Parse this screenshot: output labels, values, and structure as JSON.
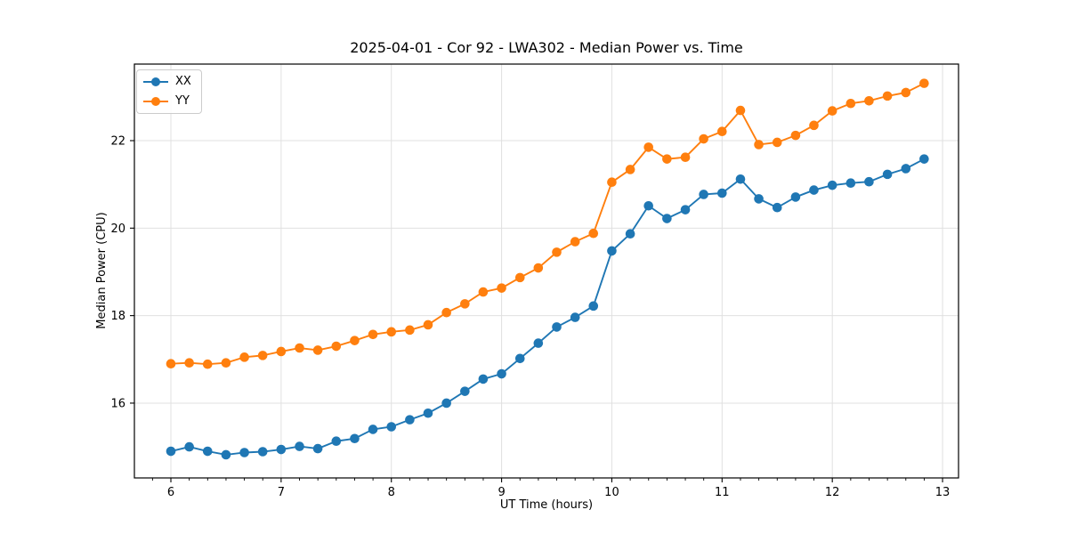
{
  "colors": {
    "xx_series": "#1f77b4",
    "yy_series": "#ff7f0e",
    "grid": "#e0e0e0",
    "spine": "#000000",
    "text": "#000000",
    "legend_border": "#cccccc",
    "background": "#ffffff"
  },
  "chart_data": {
    "type": "line",
    "title": "2025-04-01 - Cor 92 - LWA302 - Median Power vs. Time",
    "xlabel": "UT Time (hours)",
    "ylabel": "Median Power (CPU)",
    "xlim": [
      5.669,
      13.145
    ],
    "ylim": [
      14.29,
      23.75
    ],
    "xticks": [
      6,
      7,
      8,
      9,
      10,
      11,
      12,
      13
    ],
    "yticks": [
      16,
      18,
      20,
      22
    ],
    "x_minor_tick_step": 0.16667,
    "grid": true,
    "legend_position": "upper-left",
    "marker": "circle",
    "x": [
      6.0,
      6.167,
      6.333,
      6.5,
      6.667,
      6.833,
      7.0,
      7.167,
      7.333,
      7.5,
      7.667,
      7.833,
      8.0,
      8.167,
      8.333,
      8.5,
      8.667,
      8.833,
      9.0,
      9.167,
      9.333,
      9.5,
      9.667,
      9.833,
      10.0,
      10.167,
      10.333,
      10.5,
      10.667,
      10.833,
      11.0,
      11.167,
      11.333,
      11.5,
      11.667,
      11.833,
      12.0,
      12.167,
      12.333,
      12.5,
      12.667,
      12.833
    ],
    "series": [
      {
        "name": "XX",
        "color": "#1f77b4",
        "values": [
          14.9,
          15.0,
          14.9,
          14.82,
          14.87,
          14.89,
          14.94,
          15.01,
          14.96,
          15.13,
          15.19,
          15.4,
          15.46,
          15.62,
          15.77,
          16.0,
          16.27,
          16.55,
          16.67,
          17.02,
          17.37,
          17.74,
          17.96,
          18.22,
          19.48,
          19.87,
          20.51,
          20.22,
          20.42,
          20.77,
          20.8,
          21.12,
          20.67,
          20.47,
          20.71,
          20.87,
          20.98,
          21.03,
          21.06,
          21.23,
          21.36,
          21.58
        ]
      },
      {
        "name": "YY",
        "color": "#ff7f0e",
        "values": [
          16.9,
          16.92,
          16.89,
          16.92,
          17.05,
          17.09,
          17.18,
          17.26,
          17.21,
          17.3,
          17.43,
          17.57,
          17.63,
          17.67,
          17.79,
          18.07,
          18.27,
          18.54,
          18.63,
          18.87,
          19.09,
          19.45,
          19.69,
          19.88,
          21.05,
          21.34,
          21.85,
          21.58,
          21.62,
          22.04,
          22.21,
          22.69,
          21.91,
          21.96,
          22.12,
          22.35,
          22.68,
          22.85,
          22.91,
          23.02,
          23.1,
          23.31
        ]
      }
    ]
  }
}
